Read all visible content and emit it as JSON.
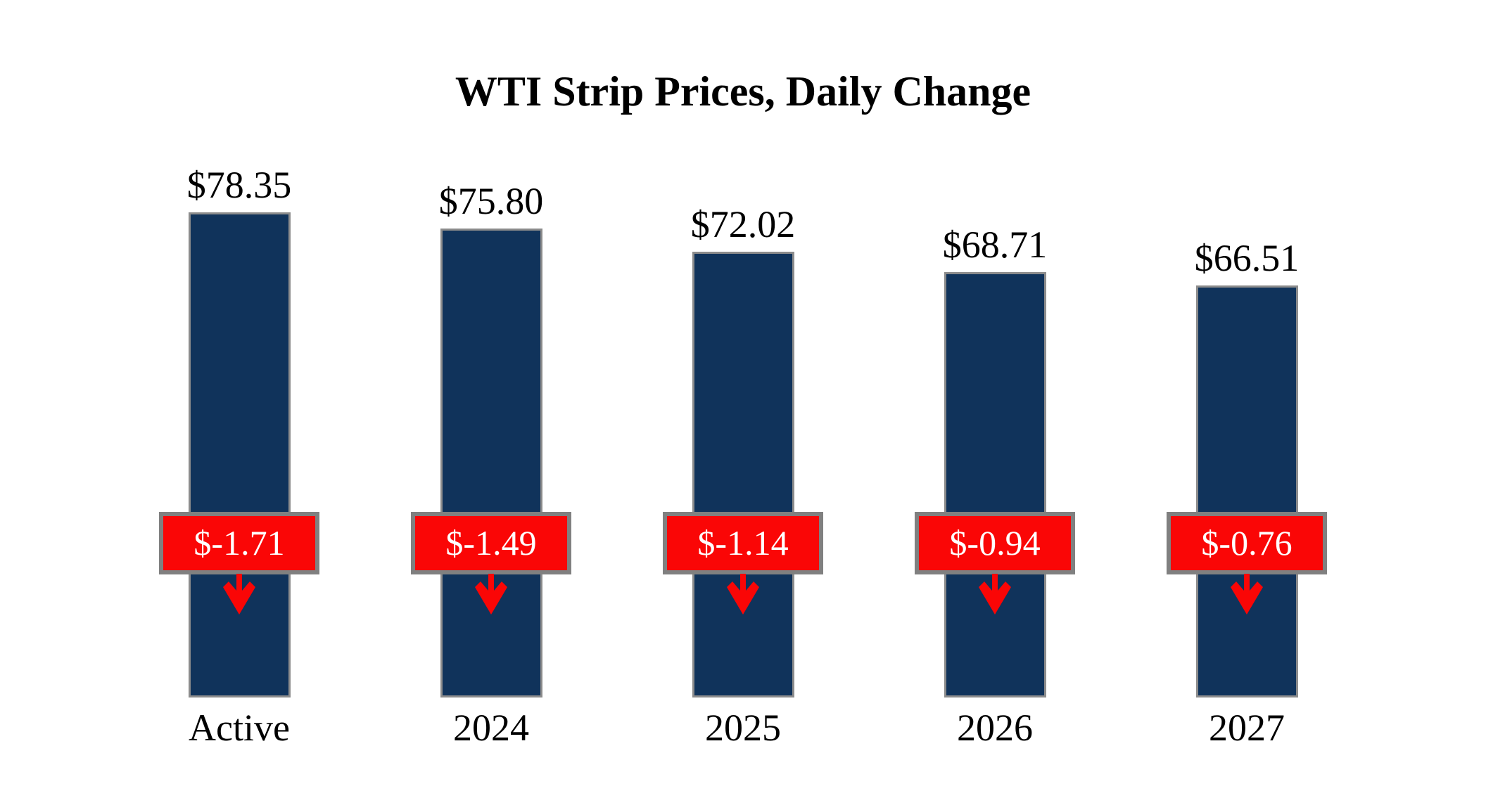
{
  "title": "WTI Strip Prices, Daily Change",
  "chart_data": {
    "type": "bar",
    "title": "WTI Strip Prices, Daily Change",
    "categories": [
      "Active",
      "2024",
      "2025",
      "2026",
      "2027"
    ],
    "values": [
      78.35,
      75.8,
      72.02,
      68.71,
      66.51
    ],
    "value_labels": [
      "$78.35",
      "$75.80",
      "$72.02",
      "$68.71",
      "$66.51"
    ],
    "changes": [
      -1.71,
      -1.49,
      -1.14,
      -0.94,
      -0.76
    ],
    "change_labels": [
      "$-1.71",
      "$-1.49",
      "$-1.14",
      "$-0.94",
      "$-0.76"
    ],
    "change_direction": "down",
    "ylim": [
      0,
      80
    ],
    "grid": false,
    "legend": false,
    "axis_labels_visible": false,
    "colors": {
      "bar_fill": "#10335b",
      "bar_border": "#8c8c8c",
      "badge_fill": "#fa0606",
      "badge_border": "#808080",
      "badge_text": "#ffffff",
      "label_text": "#000000",
      "background": "#ffffff"
    }
  }
}
